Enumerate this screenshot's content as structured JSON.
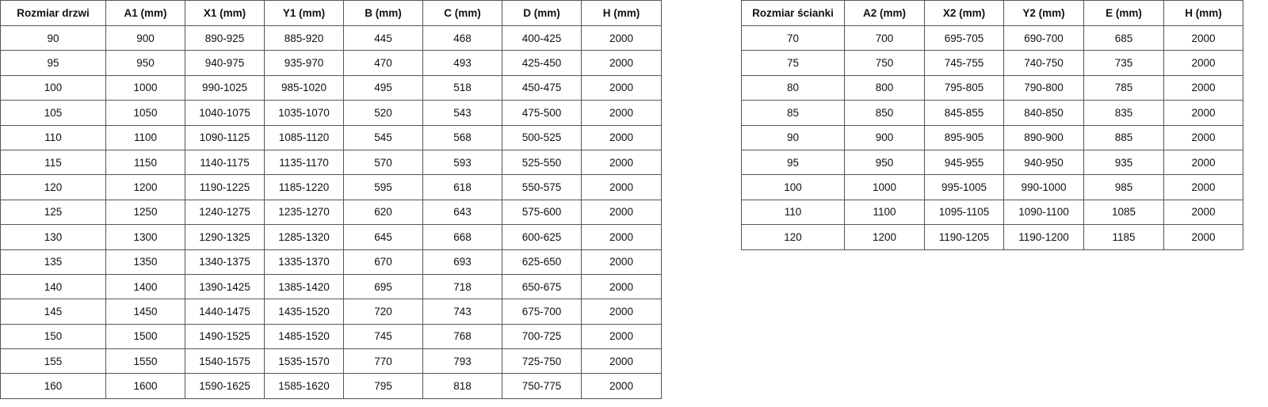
{
  "door_table": {
    "headers": [
      "Rozmiar drzwi",
      "A1 (mm)",
      "X1 (mm)",
      "Y1 (mm)",
      "B (mm)",
      "C (mm)",
      "D (mm)",
      "H (mm)"
    ],
    "rows": [
      [
        "90",
        "900",
        "890-925",
        "885-920",
        "445",
        "468",
        "400-425",
        "2000"
      ],
      [
        "95",
        "950",
        "940-975",
        "935-970",
        "470",
        "493",
        "425-450",
        "2000"
      ],
      [
        "100",
        "1000",
        "990-1025",
        "985-1020",
        "495",
        "518",
        "450-475",
        "2000"
      ],
      [
        "105",
        "1050",
        "1040-1075",
        "1035-1070",
        "520",
        "543",
        "475-500",
        "2000"
      ],
      [
        "110",
        "1100",
        "1090-1125",
        "1085-1120",
        "545",
        "568",
        "500-525",
        "2000"
      ],
      [
        "115",
        "1150",
        "1140-1175",
        "1135-1170",
        "570",
        "593",
        "525-550",
        "2000"
      ],
      [
        "120",
        "1200",
        "1190-1225",
        "1185-1220",
        "595",
        "618",
        "550-575",
        "2000"
      ],
      [
        "125",
        "1250",
        "1240-1275",
        "1235-1270",
        "620",
        "643",
        "575-600",
        "2000"
      ],
      [
        "130",
        "1300",
        "1290-1325",
        "1285-1320",
        "645",
        "668",
        "600-625",
        "2000"
      ],
      [
        "135",
        "1350",
        "1340-1375",
        "1335-1370",
        "670",
        "693",
        "625-650",
        "2000"
      ],
      [
        "140",
        "1400",
        "1390-1425",
        "1385-1420",
        "695",
        "718",
        "650-675",
        "2000"
      ],
      [
        "145",
        "1450",
        "1440-1475",
        "1435-1520",
        "720",
        "743",
        "675-700",
        "2000"
      ],
      [
        "150",
        "1500",
        "1490-1525",
        "1485-1520",
        "745",
        "768",
        "700-725",
        "2000"
      ],
      [
        "155",
        "1550",
        "1540-1575",
        "1535-1570",
        "770",
        "793",
        "725-750",
        "2000"
      ],
      [
        "160",
        "1600",
        "1590-1625",
        "1585-1620",
        "795",
        "818",
        "750-775",
        "2000"
      ]
    ]
  },
  "wall_table": {
    "headers": [
      "Rozmiar ścianki",
      "A2 (mm)",
      "X2 (mm)",
      "Y2 (mm)",
      "E (mm)",
      "H (mm)"
    ],
    "rows": [
      [
        "70",
        "700",
        "695-705",
        "690-700",
        "685",
        "2000"
      ],
      [
        "75",
        "750",
        "745-755",
        "740-750",
        "735",
        "2000"
      ],
      [
        "80",
        "800",
        "795-805",
        "790-800",
        "785",
        "2000"
      ],
      [
        "85",
        "850",
        "845-855",
        "840-850",
        "835",
        "2000"
      ],
      [
        "90",
        "900",
        "895-905",
        "890-900",
        "885",
        "2000"
      ],
      [
        "95",
        "950",
        "945-955",
        "940-950",
        "935",
        "2000"
      ],
      [
        "100",
        "1000",
        "995-1005",
        "990-1000",
        "985",
        "2000"
      ],
      [
        "110",
        "1100",
        "1095-1105",
        "1090-1100",
        "1085",
        "2000"
      ],
      [
        "120",
        "1200",
        "1190-1205",
        "1190-1200",
        "1185",
        "2000"
      ]
    ]
  }
}
